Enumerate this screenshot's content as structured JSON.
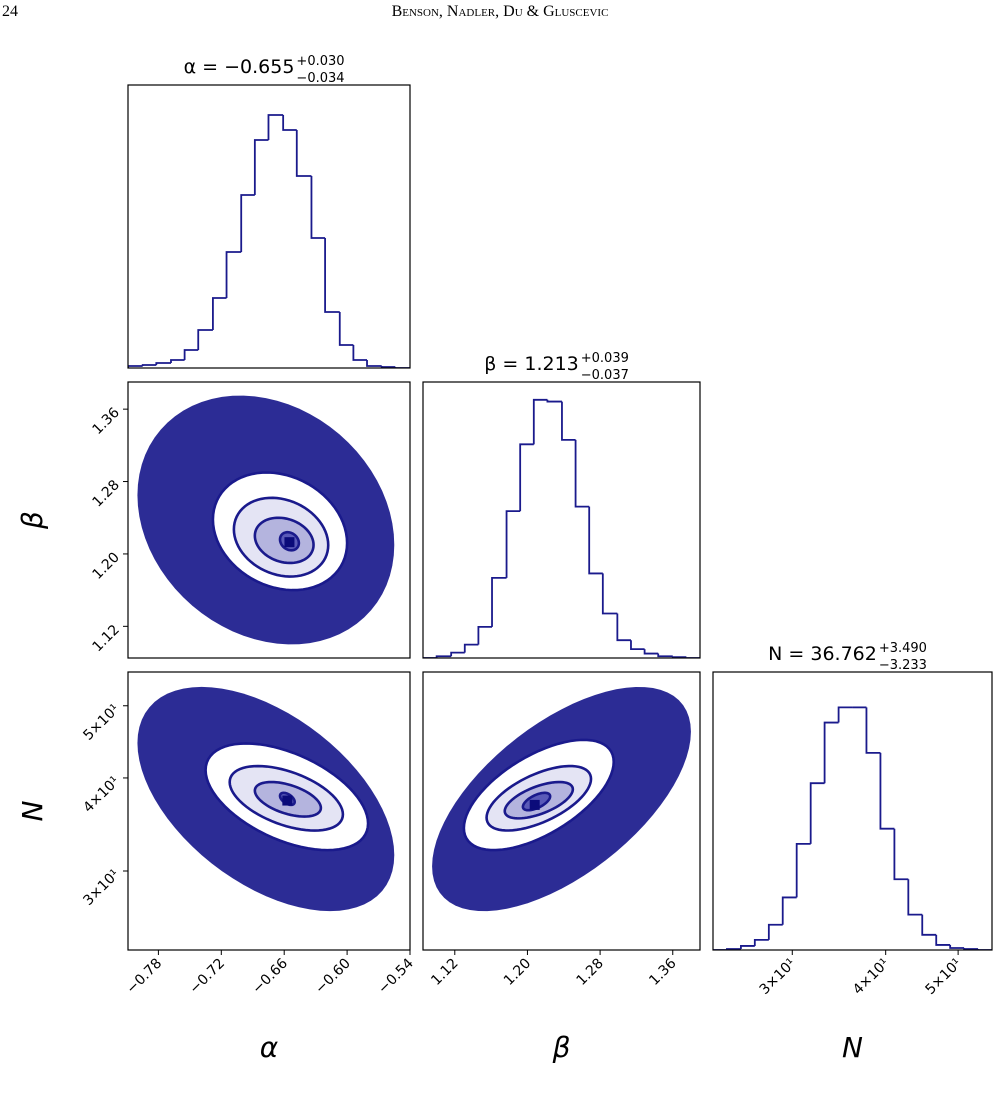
{
  "header": {
    "page": "24",
    "running_title": "Benson, Nadler, Du & Gluscevic"
  },
  "chart_data": [
    {
      "type": "histogram",
      "title": "α = −0.655",
      "title_upper": "+0.030",
      "title_lower": "−0.034",
      "color": "#1a1a8c",
      "bins": [
        -0.809,
        -0.795,
        -0.782,
        -0.768,
        -0.755,
        -0.742,
        -0.728,
        -0.715,
        -0.701,
        -0.688,
        -0.675,
        -0.661,
        -0.648,
        -0.634,
        -0.621,
        -0.607,
        -0.594,
        -0.581,
        -0.567,
        -0.554,
        -0.54
      ],
      "values": [
        2,
        3,
        5,
        8,
        18,
        38,
        70,
        116,
        173,
        228,
        253,
        238,
        192,
        130,
        56,
        23,
        8,
        2,
        1,
        0
      ],
      "xlim": [
        -0.809,
        -0.54
      ],
      "ylim": [
        0,
        283
      ]
    },
    {
      "type": "contour",
      "color": "#1a1a8c",
      "ylabel": "β",
      "xlim": [
        -0.809,
        -0.54
      ],
      "ylim": [
        1.085,
        1.39
      ],
      "yticks": [
        {
          "value": 1.12,
          "label": "1.12"
        },
        {
          "value": 1.2,
          "label": "1.20"
        },
        {
          "value": 1.28,
          "label": "1.28"
        },
        {
          "value": 1.36,
          "label": "1.36"
        }
      ],
      "center": [
        -0.655,
        1.213
      ],
      "corr": -0.2,
      "cloud": {
        "x": [
          -0.8,
          -0.555
        ],
        "y": [
          1.1,
          1.375
        ]
      },
      "contours": [
        {
          "x": [
            -0.728,
            -0.6
          ],
          "y": [
            1.16,
            1.29
          ]
        },
        {
          "x": [
            -0.708,
            -0.618
          ],
          "y": [
            1.175,
            1.262
          ]
        },
        {
          "x": [
            -0.688,
            -0.632
          ],
          "y": [
            1.19,
            1.24
          ]
        },
        {
          "x": [
            -0.664,
            -0.646
          ],
          "y": [
            1.204,
            1.224
          ]
        }
      ]
    },
    {
      "type": "histogram",
      "title": "β = 1.213",
      "title_upper": "+0.039",
      "title_lower": "−0.037",
      "color": "#1a1a8c",
      "bins": [
        1.085,
        1.1,
        1.116,
        1.131,
        1.146,
        1.161,
        1.177,
        1.192,
        1.207,
        1.222,
        1.238,
        1.253,
        1.268,
        1.283,
        1.299,
        1.314,
        1.329,
        1.344,
        1.36,
        1.375,
        1.39
      ],
      "values": [
        0,
        2,
        6,
        15,
        35,
        90,
        165,
        240,
        290,
        288,
        245,
        170,
        95,
        50,
        20,
        10,
        5,
        2,
        1,
        0
      ],
      "xlim": [
        1.085,
        1.39
      ],
      "ylim": [
        0,
        310
      ]
    },
    {
      "type": "contour",
      "color": "#1a1a8c",
      "xlabel": "α",
      "ylabel": "N",
      "yscale": "log",
      "xlim": [
        -0.809,
        -0.54
      ],
      "ylim": [
        23.5,
        55.5
      ],
      "xticks": [
        {
          "value": -0.78,
          "label": "−0.78"
        },
        {
          "value": -0.72,
          "label": "−0.72"
        },
        {
          "value": -0.66,
          "label": "−0.66"
        },
        {
          "value": -0.6,
          "label": "−0.60"
        },
        {
          "value": -0.54,
          "label": "−0.54"
        }
      ],
      "yticks": [
        {
          "value": 30,
          "label": "3×10¹"
        },
        {
          "value": 40,
          "label": "4×10¹"
        },
        {
          "value": 50,
          "label": "5×10¹"
        }
      ],
      "center": [
        -0.657,
        37.3
      ],
      "corr": -0.5,
      "cloud": {
        "x": [
          -0.8,
          -0.555
        ],
        "y": [
          26.5,
          53
        ]
      },
      "contours": [
        {
          "x": [
            -0.735,
            -0.58
          ],
          "y": [
            32,
            44.5
          ]
        },
        {
          "x": [
            -0.712,
            -0.604
          ],
          "y": [
            34,
            41.5
          ]
        },
        {
          "x": [
            -0.688,
            -0.625
          ],
          "y": [
            35.5,
            39.5
          ]
        },
        {
          "x": [
            -0.664,
            -0.65
          ],
          "y": [
            36.8,
            38.2
          ]
        }
      ]
    },
    {
      "type": "contour",
      "color": "#1a1a8c",
      "xlabel": "β",
      "yscale": "log",
      "xlim": [
        1.085,
        1.39
      ],
      "ylim": [
        23.5,
        55.5
      ],
      "xticks": [
        {
          "value": 1.12,
          "label": "1.12"
        },
        {
          "value": 1.2,
          "label": "1.20"
        },
        {
          "value": 1.28,
          "label": "1.28"
        },
        {
          "value": 1.36,
          "label": "1.36"
        }
      ],
      "center": [
        1.208,
        36.8
      ],
      "corr": 0.6,
      "cloud": {
        "x": [
          1.095,
          1.38
        ],
        "y": [
          26.5,
          53
        ]
      },
      "contours": [
        {
          "x": [
            1.13,
            1.295
          ],
          "y": [
            32,
            45
          ]
        },
        {
          "x": [
            1.155,
            1.27
          ],
          "y": [
            34,
            41.5
          ]
        },
        {
          "x": [
            1.175,
            1.25
          ],
          "y": [
            35.3,
            39.5
          ]
        },
        {
          "x": [
            1.195,
            1.225
          ],
          "y": [
            36.2,
            38.2
          ]
        }
      ]
    },
    {
      "type": "histogram",
      "title": "N = 36.762",
      "title_upper": "+3.490",
      "title_lower": "−3.233",
      "color": "#1a1a8c",
      "xlabel": "N",
      "xscale": "log",
      "bins": [
        23.5,
        24.53,
        25.61,
        26.73,
        27.91,
        29.13,
        30.41,
        31.75,
        33.14,
        34.6,
        36.12,
        37.7,
        39.36,
        41.09,
        42.89,
        44.77,
        46.74,
        48.79,
        50.93,
        53.17,
        55.5
      ],
      "values": [
        0,
        1,
        4,
        10,
        25,
        52,
        105,
        165,
        225,
        240,
        240,
        195,
        120,
        70,
        35,
        15,
        5,
        2,
        1,
        0
      ],
      "xlim": [
        23.5,
        55.5
      ],
      "ylim": [
        0,
        275
      ],
      "xticks": [
        {
          "value": 30,
          "label": "3×10¹"
        },
        {
          "value": 40,
          "label": "4×10¹"
        },
        {
          "value": 50,
          "label": "5×10¹"
        }
      ]
    }
  ]
}
